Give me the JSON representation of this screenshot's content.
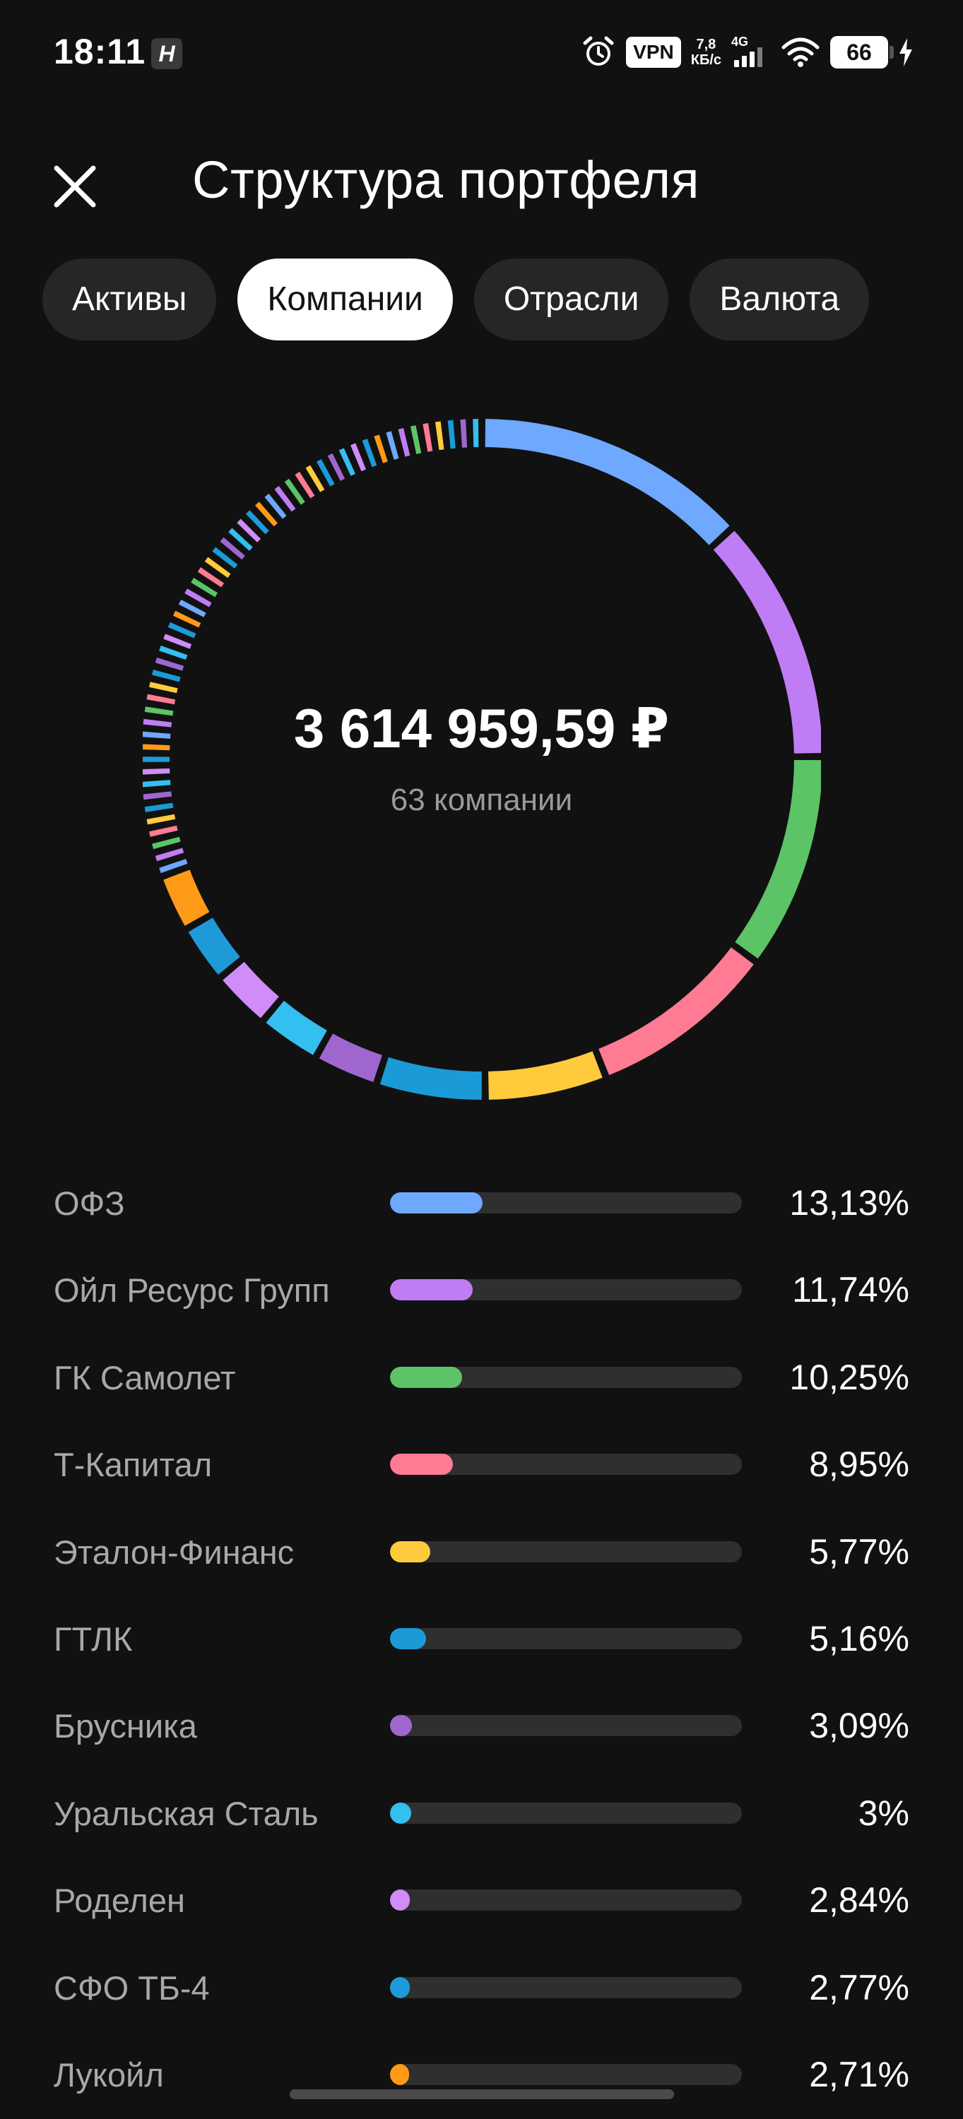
{
  "status_bar": {
    "time": "18:11",
    "app_badge": "H",
    "alarm_icon": "alarm-clock-icon",
    "vpn": "VPN",
    "speed_value": "7,8",
    "speed_unit": "КБ/с",
    "network": "4G",
    "battery": "66"
  },
  "header": {
    "title": "Структура портфеля",
    "close_icon": "close-icon"
  },
  "tabs": [
    {
      "label": "Активы",
      "active": false
    },
    {
      "label": "Компании",
      "active": true
    },
    {
      "label": "Отрасли",
      "active": false
    },
    {
      "label": "Валюта",
      "active": false
    }
  ],
  "summary": {
    "total": "3 614 959,59 ₽",
    "count": "63 компании"
  },
  "colors": {
    "background": "#111111",
    "track": "#2f2f2f",
    "palette": [
      "#6ea8ff",
      "#c07cf5",
      "#5cc466",
      "#ff7b93",
      "#ffcb3d",
      "#1a9bd8",
      "#a066d0",
      "#33bff0",
      "#d08cf8",
      "#1e9ad8",
      "#ff9a18"
    ]
  },
  "companies": [
    {
      "name": "ОФЗ",
      "percent": "13,13%",
      "value": 13.13,
      "color": "#6ea8ff"
    },
    {
      "name": "Ойл Ресурс Групп",
      "percent": "11,74%",
      "value": 11.74,
      "color": "#c07cf5"
    },
    {
      "name": "ГК Самолет",
      "percent": "10,25%",
      "value": 10.25,
      "color": "#5cc466"
    },
    {
      "name": "Т-Капитал",
      "percent": "8,95%",
      "value": 8.95,
      "color": "#ff7b93"
    },
    {
      "name": "Эталон-Финанс",
      "percent": "5,77%",
      "value": 5.77,
      "color": "#ffcb3d"
    },
    {
      "name": "ГТЛК",
      "percent": "5,16%",
      "value": 5.16,
      "color": "#1a9bd8"
    },
    {
      "name": "Брусника",
      "percent": "3,09%",
      "value": 3.09,
      "color": "#a066d0"
    },
    {
      "name": "Уральская Сталь",
      "percent": "3%",
      "value": 3.0,
      "color": "#33bff0"
    },
    {
      "name": "Роделен",
      "percent": "2,84%",
      "value": 2.84,
      "color": "#d08cf8"
    },
    {
      "name": "СФО ТБ-4",
      "percent": "2,77%",
      "value": 2.77,
      "color": "#1e9ad8"
    },
    {
      "name": "Лукойл",
      "percent": "2,71%",
      "value": 2.71,
      "color": "#ff9a18"
    }
  ]
}
